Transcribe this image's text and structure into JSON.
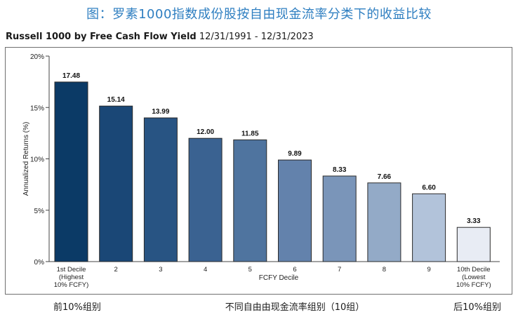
{
  "page": {
    "caption": "图：罗素1000指数成份股按自由现金流率分类下的收益比较",
    "chart_title_main": "Russell 1000 by Free Cash Flow Yield",
    "chart_title_period": "12/31/1991 - 12/31/2023",
    "footer_left": "前10%组别",
    "footer_mid": "不同自由由现金流率组别（10组）",
    "footer_right": "后10%组别"
  },
  "chart_data": {
    "type": "bar",
    "title": "Russell 1000 by Free Cash Flow Yield",
    "subtitle": "12/31/1991 - 12/31/2023",
    "xlabel": "FCFY Decile",
    "ylabel": "Annualized Returns (%)",
    "ylim": [
      0,
      20
    ],
    "yticks": [
      0,
      5,
      10,
      15,
      20
    ],
    "ytick_labels": [
      "0%",
      "5%",
      "10%",
      "15%",
      "20%"
    ],
    "grid": false,
    "categories": [
      [
        "1st Decile",
        "(Highest",
        "10% FCFY)"
      ],
      [
        "2"
      ],
      [
        "3"
      ],
      [
        "4"
      ],
      [
        "5"
      ],
      [
        "6"
      ],
      [
        "7"
      ],
      [
        "8"
      ],
      [
        "9"
      ],
      [
        "10th Decile",
        "(Lowest",
        "10% FCFY)"
      ]
    ],
    "values": [
      17.48,
      15.14,
      13.99,
      12.0,
      11.85,
      9.89,
      8.33,
      7.66,
      6.6,
      3.33
    ],
    "value_labels": [
      "17.48",
      "15.14",
      "13.99",
      "12.00",
      "11.85",
      "9.89",
      "8.33",
      "7.66",
      "6.60",
      "3.33"
    ],
    "colors": [
      "#0b3a66",
      "#1a4776",
      "#285483",
      "#3a6291",
      "#4f749f",
      "#6382ac",
      "#7a95b9",
      "#93aac7",
      "#b2c3da",
      "#e8ecf4"
    ],
    "bar_outline": "#2a2a2a"
  }
}
